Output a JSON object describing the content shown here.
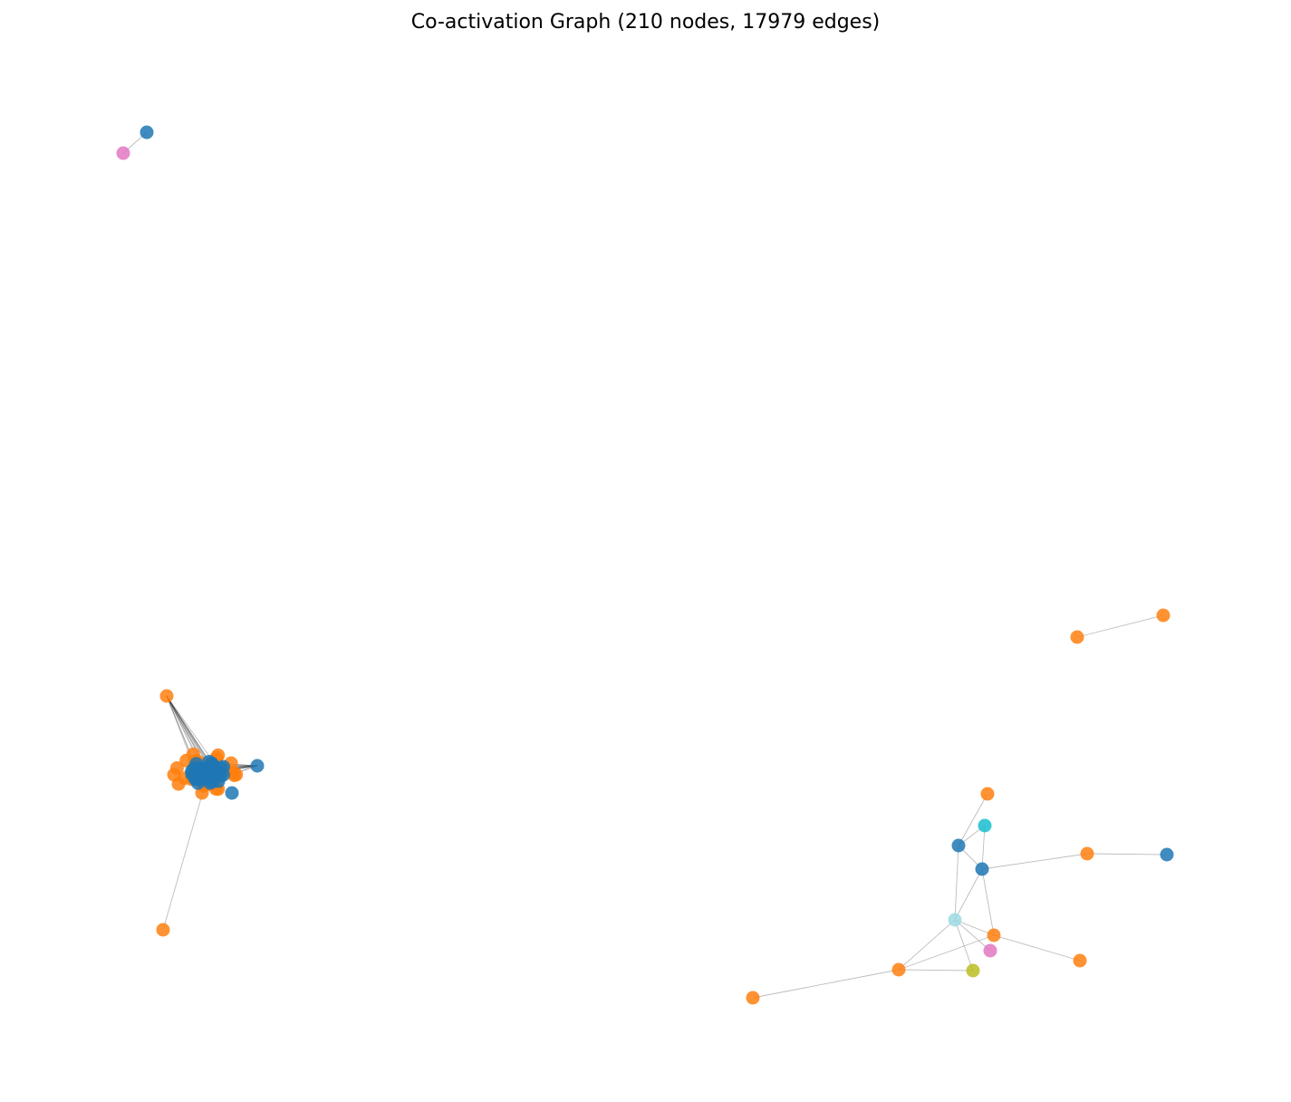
{
  "figure": {
    "title": "Co-activation Graph (210 nodes, 17979 edges)"
  },
  "colors": {
    "blue": "#1f77b4",
    "orange": "#ff7f0e",
    "pink": "#e377c2",
    "cyan": "#17becf",
    "lightcyan": "#9edae5",
    "olive": "#bcbd22",
    "edge": "#b0b0b0",
    "dense_edge": "#222222"
  },
  "graph": {
    "node_count": 210,
    "edge_count": 17979,
    "components": [
      {
        "id": "top-left-pair",
        "nodes": [
          {
            "id": "a1",
            "color": "blue"
          },
          {
            "id": "a2",
            "color": "pink"
          }
        ],
        "edges": [
          [
            "a1",
            "a2"
          ]
        ]
      },
      {
        "id": "dense-cluster",
        "nodes": [
          {
            "id": "c_top",
            "color": "orange"
          },
          {
            "id": "c_bottom",
            "color": "orange"
          },
          {
            "id": "c_right",
            "color": "blue"
          },
          {
            "id": "c_core",
            "color": "blue",
            "dense": true
          }
        ],
        "edges": [
          [
            "c_top",
            "c_core"
          ],
          [
            "c_bottom",
            "c_core"
          ],
          [
            "c_right",
            "c_core"
          ]
        ]
      },
      {
        "id": "right-pair",
        "nodes": [
          {
            "id": "r1",
            "color": "orange"
          },
          {
            "id": "r2",
            "color": "orange"
          }
        ],
        "edges": [
          [
            "r1",
            "r2"
          ]
        ]
      },
      {
        "id": "bottom-right-network",
        "nodes": [
          {
            "id": "n1",
            "color": "orange"
          },
          {
            "id": "n2",
            "color": "cyan"
          },
          {
            "id": "n3",
            "color": "blue"
          },
          {
            "id": "n4",
            "color": "blue"
          },
          {
            "id": "n5",
            "color": "orange"
          },
          {
            "id": "n6",
            "color": "blue"
          },
          {
            "id": "n7",
            "color": "lightcyan"
          },
          {
            "id": "n8",
            "color": "orange"
          },
          {
            "id": "n9",
            "color": "pink"
          },
          {
            "id": "n10",
            "color": "orange"
          },
          {
            "id": "n11",
            "color": "orange"
          },
          {
            "id": "n12",
            "color": "olive"
          },
          {
            "id": "n13",
            "color": "orange"
          }
        ],
        "edges": [
          [
            "n1",
            "n3"
          ],
          [
            "n2",
            "n3"
          ],
          [
            "n2",
            "n4"
          ],
          [
            "n3",
            "n4"
          ],
          [
            "n3",
            "n7"
          ],
          [
            "n4",
            "n5"
          ],
          [
            "n5",
            "n6"
          ],
          [
            "n4",
            "n7"
          ],
          [
            "n4",
            "n8"
          ],
          [
            "n7",
            "n8"
          ],
          [
            "n7",
            "n9"
          ],
          [
            "n7",
            "n11"
          ],
          [
            "n7",
            "n12"
          ],
          [
            "n8",
            "n10"
          ],
          [
            "n8",
            "n11"
          ],
          [
            "n11",
            "n12"
          ],
          [
            "n11",
            "n13"
          ]
        ]
      }
    ]
  }
}
